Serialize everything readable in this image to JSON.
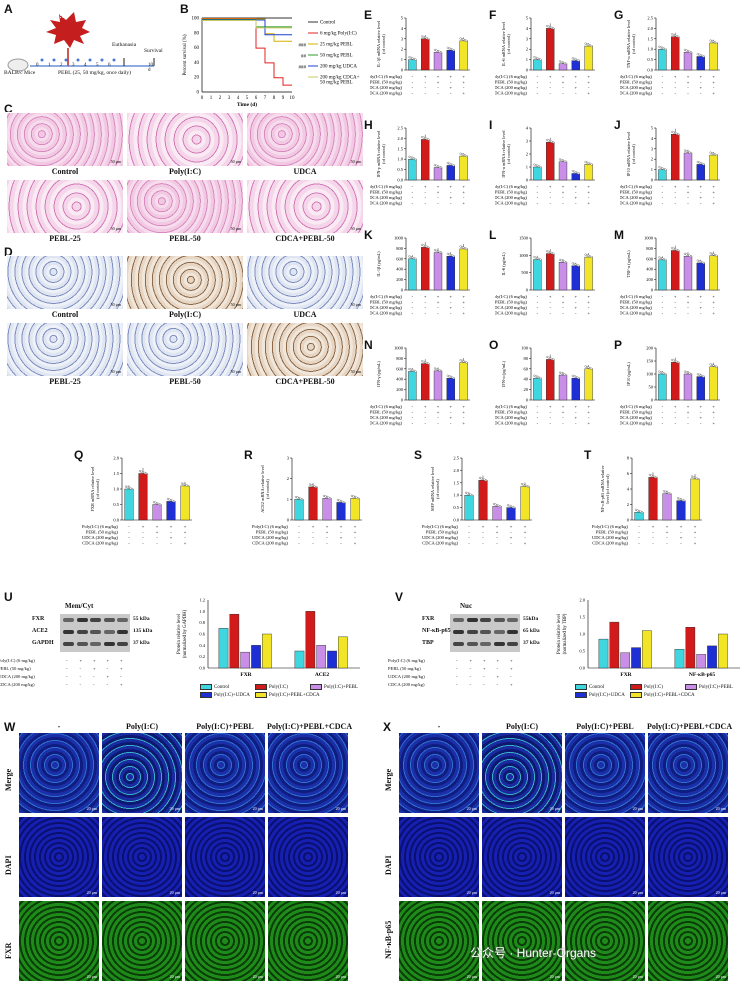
{
  "panels": {
    "A": {
      "label": "A",
      "stimulus": "Poly(I:C)",
      "mouse": "BALB/c Mice",
      "treatment": "PEBL (25, 50 mg/kg, once daily)",
      "euthanasia": "Euthanasia",
      "survival": "Survival",
      "days": [
        "0",
        "1",
        "2",
        "3",
        "4",
        "5",
        "6",
        "10 d"
      ]
    },
    "B": {
      "label": "B",
      "ylabel": "Percent survival (%)",
      "xlabel": "Time (d)",
      "legend": [
        "Control",
        "6 mg/kg Poly(I:C)",
        "25 mg/kg PEBL",
        "50 mg/kg PEBL",
        "200 mg/kg UDCA",
        "200 mg/kg CDCA+\n50 mg/kg PEBL"
      ],
      "sig": [
        "###",
        "##",
        "###"
      ],
      "legend_colors": [
        "#333333",
        "#e02020",
        "#d6b100",
        "#2a9d2a",
        "#1f3fd0",
        "#c8c860"
      ]
    },
    "C": {
      "label": "C",
      "captions": [
        "Control",
        "Poly(I:C)",
        "UDCA",
        "PEBL-25",
        "PEBL-50",
        "CDCA+PEBL-50"
      ],
      "scale": "50 µm"
    },
    "D": {
      "label": "D",
      "captions": [
        "Control",
        "Poly(I:C)",
        "UDCA",
        "PEBL-25",
        "PEBL-50",
        "CDCA+PEBL-50"
      ],
      "scale": "50 µm"
    },
    "treat_rows4": "Poly(I:C) (6 mg/kg)\nPEBL (50 mg/kg)\nUDCA (200 mg/kg)\nCDCA (200 mg/kg)",
    "signs4": "-  +  +  +  +\n-  -  +  -  +\n-  -  -  +  -\n-  -  -  -  +",
    "U": {
      "label": "U",
      "blot_title": "Mem/Cyt",
      "rows": [
        "FXR",
        "ACE2",
        "GAPDH"
      ],
      "kda": [
        "55 kDa",
        "135 kDa",
        "37 kDa"
      ],
      "ylabel": "Protein relative level\n(normalized by GAPDH)",
      "groups": [
        "FXR",
        "ACE2"
      ],
      "legend": [
        "Control",
        "Poly(I:C)",
        "Poly(I:C)+PEBL",
        "Poly(I:C)+UDCA",
        "Poly(I:C)+PEBL+CDCA"
      ]
    },
    "V": {
      "label": "V",
      "blot_title": "Nuc",
      "rows": [
        "FXR",
        "NF-κB-p65",
        "TBP"
      ],
      "kda": [
        "55kDa",
        "65 kDa",
        "37 kDa"
      ],
      "ylabel": "Protein relative level\n(normalized by TBP)",
      "groups": [
        "FXR",
        "NF-κB-p65"
      ],
      "legend": [
        "Control",
        "Poly(I:C)",
        "Poly(I:C)+PEBL",
        "Poly(I:C)+UDCA",
        "Poly(I:C)+PEBL+CDCA"
      ]
    },
    "W": {
      "label": "W",
      "cols": [
        "-",
        "Poly(I:C)",
        "Poly(I:C)+PEBL",
        "Poly(I:C)+PEBL+CDCA"
      ],
      "rows": [
        "Merge",
        "DAPI",
        "FXR"
      ],
      "scale": "20 µm"
    },
    "X": {
      "label": "X",
      "cols": [
        "-",
        "Poly(I:C)",
        "Poly(I:C)+PEBL",
        "Poly(I:C)+PEBL+CDCA"
      ],
      "rows": [
        "Merge",
        "DAPI",
        "NF-κB-p65"
      ],
      "scale": "20 µm"
    },
    "watermark": "公众号 · Hunter-Organs"
  },
  "chart_data": [
    {
      "panel": "B",
      "type": "line",
      "title": "",
      "xlabel": "Time (d)",
      "ylabel": "Percent survival (%)",
      "x": [
        0,
        1,
        2,
        3,
        4,
        5,
        6,
        7,
        8,
        9,
        10
      ],
      "xlim": [
        0,
        10
      ],
      "ylim": [
        0,
        100
      ],
      "series": [
        {
          "name": "Control",
          "values": [
            100,
            100,
            100,
            100,
            100,
            100,
            100,
            100,
            100,
            100,
            100
          ]
        },
        {
          "name": "6 mg/kg Poly(I:C)",
          "values": [
            100,
            100,
            100,
            100,
            100,
            100,
            60,
            40,
            20,
            10,
            10
          ]
        },
        {
          "name": "25 mg/kg PEBL",
          "values": [
            100,
            100,
            100,
            100,
            100,
            100,
            100,
            80,
            70,
            70,
            70
          ]
        },
        {
          "name": "50 mg/kg PEBL",
          "values": [
            100,
            100,
            100,
            100,
            100,
            100,
            90,
            90,
            90,
            90,
            90
          ]
        },
        {
          "name": "200 mg/kg UDCA",
          "values": [
            100,
            100,
            100,
            100,
            100,
            100,
            100,
            80,
            80,
            80,
            80
          ]
        },
        {
          "name": "200 mg/kg CDCA+ 50 mg/kg PEBL",
          "values": [
            100,
            100,
            100,
            100,
            100,
            100,
            90,
            90,
            90,
            90,
            90
          ]
        }
      ]
    },
    {
      "panel": "E",
      "type": "bar",
      "ylabel": "IL-1β mRNA relative level\n(of control)",
      "ylim": [
        0,
        5
      ],
      "yticks": [
        "0",
        "1",
        "2",
        "3",
        "4",
        "5"
      ],
      "values": [
        1.0,
        3.0,
        1.7,
        1.9,
        2.8
      ]
    },
    {
      "panel": "F",
      "type": "bar",
      "ylabel": "IL-6 mRNA relative level\n(of control)",
      "ylim": [
        0,
        5
      ],
      "yticks": [
        "0",
        "1",
        "2",
        "3",
        "4",
        "5"
      ],
      "values": [
        1.0,
        4.0,
        0.6,
        0.9,
        2.3
      ]
    },
    {
      "panel": "G",
      "type": "bar",
      "ylabel": "TNF-α mRNA relative level\n(of control)",
      "ylim": [
        0,
        2.5
      ],
      "yticks": [
        "0.0",
        "0.5",
        "1.0",
        "1.5",
        "2.0",
        "2.5"
      ],
      "values": [
        1.0,
        1.6,
        0.85,
        0.65,
        1.3
      ]
    },
    {
      "panel": "H",
      "type": "bar",
      "ylabel": "IFN-γ mRNA relative level\n(of control)",
      "ylim": [
        0,
        2.5
      ],
      "yticks": [
        "0.0",
        "0.5",
        "1.0",
        "1.5",
        "2.0",
        "2.5"
      ],
      "values": [
        1.0,
        1.95,
        0.6,
        0.7,
        1.15
      ]
    },
    {
      "panel": "I",
      "type": "bar",
      "ylabel": "IFN-α mRNA relative level\n(of control)",
      "ylim": [
        0,
        4
      ],
      "yticks": [
        "0",
        "1",
        "2",
        "3",
        "4"
      ],
      "values": [
        1.0,
        2.9,
        1.4,
        0.5,
        1.2
      ]
    },
    {
      "panel": "J",
      "type": "bar",
      "ylabel": "IP10 mRNA relative level\n(of control)",
      "ylim": [
        0,
        5
      ],
      "yticks": [
        "0",
        "1",
        "2",
        "3",
        "4",
        "5"
      ],
      "values": [
        1.0,
        4.4,
        2.6,
        1.5,
        2.4
      ]
    },
    {
      "panel": "K",
      "type": "bar",
      "ylabel": "IL-1β (pg/mL)",
      "ylim": [
        0,
        1000
      ],
      "yticks": [
        "0",
        "200",
        "400",
        "600",
        "800",
        "1000"
      ],
      "values": [
        600,
        820,
        720,
        650,
        790
      ]
    },
    {
      "panel": "L",
      "type": "bar",
      "ylabel": "IL-6 (pg/mL)",
      "ylim": [
        0,
        1500
      ],
      "yticks": [
        "0",
        "500",
        "1000",
        "1500"
      ],
      "values": [
        880,
        1050,
        800,
        700,
        950
      ]
    },
    {
      "panel": "M",
      "type": "bar",
      "ylabel": "TNF-α (pg/mL)",
      "ylim": [
        0,
        1000
      ],
      "yticks": [
        "0",
        "200",
        "400",
        "600",
        "800",
        "1000"
      ],
      "values": [
        580,
        760,
        650,
        520,
        660
      ]
    },
    {
      "panel": "N",
      "type": "bar",
      "ylabel": "IFN-γ (pg/mL)",
      "ylim": [
        0,
        1000
      ],
      "yticks": [
        "0",
        "200",
        "400",
        "600",
        "800",
        "1000"
      ],
      "values": [
        550,
        700,
        560,
        420,
        720
      ]
    },
    {
      "panel": "O",
      "type": "bar",
      "ylabel": "IFN-α (pg/mL)",
      "ylim": [
        0,
        100
      ],
      "yticks": [
        "0",
        "20",
        "40",
        "60",
        "80",
        "100"
      ],
      "values": [
        42,
        78,
        48,
        42,
        60
      ]
    },
    {
      "panel": "P",
      "type": "bar",
      "ylabel": "IP10 (pg/mL)",
      "ylim": [
        0,
        200
      ],
      "yticks": [
        "0",
        "50",
        "100",
        "150",
        "200"
      ],
      "values": [
        100,
        145,
        100,
        90,
        128
      ]
    },
    {
      "panel": "Q",
      "type": "bar",
      "ylabel": "FXR mRNA relative level\n(of control)",
      "ylim": [
        0,
        2.0
      ],
      "yticks": [
        "0.0",
        "0.5",
        "1.0",
        "1.5",
        "2.0"
      ],
      "values": [
        1.0,
        1.5,
        0.5,
        0.6,
        1.1
      ]
    },
    {
      "panel": "R",
      "type": "bar",
      "ylabel": "ACE2 mRNA relative level\n(of control)",
      "ylim": [
        0,
        3
      ],
      "yticks": [
        "0",
        "1",
        "2",
        "3"
      ],
      "values": [
        1.0,
        1.6,
        1.05,
        0.85,
        1.05
      ]
    },
    {
      "panel": "S",
      "type": "bar",
      "ylabel": "SHP mRNA relative level\n(of control)",
      "ylim": [
        0,
        2.5
      ],
      "yticks": [
        "0.0",
        "0.5",
        "1.0",
        "1.5",
        "2.0",
        "2.5"
      ],
      "values": [
        1.0,
        1.6,
        0.55,
        0.5,
        1.35
      ]
    },
    {
      "panel": "T",
      "type": "bar",
      "ylabel": "NF-κB-p65 mRNA relative\nlevel (of control)",
      "ylim": [
        0,
        8
      ],
      "yticks": [
        "0",
        "2",
        "4",
        "6",
        "8"
      ],
      "values": [
        1.0,
        5.5,
        3.4,
        2.5,
        5.3
      ]
    },
    {
      "panel": "U",
      "type": "bar",
      "ylabel": "Protein relative level\n(normalized by GAPDH)",
      "ylim": [
        0,
        1.2
      ],
      "yticks": [
        "0.0",
        "0.2",
        "0.4",
        "0.6",
        "0.8",
        "1.0",
        "1.2"
      ],
      "categories": [
        "FXR",
        "ACE2"
      ],
      "series": [
        {
          "name": "Control",
          "values": [
            0.7,
            0.3
          ]
        },
        {
          "name": "Poly(I:C)",
          "values": [
            0.95,
            1.0
          ]
        },
        {
          "name": "Poly(I:C)+PEBL",
          "values": [
            0.28,
            0.4
          ]
        },
        {
          "name": "Poly(I:C)+UDCA",
          "values": [
            0.4,
            0.3
          ]
        },
        {
          "name": "Poly(I:C)+PEBL+CDCA",
          "values": [
            0.6,
            0.55
          ]
        }
      ]
    },
    {
      "panel": "V",
      "type": "bar",
      "ylabel": "Protein relative level\n(normalized by TBP)",
      "ylim": [
        0,
        2.0
      ],
      "yticks": [
        "0.0",
        "0.5",
        "1.0",
        "1.5",
        "2.0"
      ],
      "categories": [
        "FXR",
        "NF-κB-p65"
      ],
      "series": [
        {
          "name": "Control",
          "values": [
            0.85,
            0.55
          ]
        },
        {
          "name": "Poly(I:C)",
          "values": [
            1.35,
            1.2
          ]
        },
        {
          "name": "Poly(I:C)+PEBL",
          "values": [
            0.45,
            0.4
          ]
        },
        {
          "name": "Poly(I:C)+UDCA",
          "values": [
            0.6,
            0.65
          ]
        },
        {
          "name": "Poly(I:C)+PEBL+CDCA",
          "values": [
            1.1,
            1.0
          ]
        }
      ]
    }
  ],
  "colors": {
    "bars": [
      "#3fd6e0",
      "#d11a1a",
      "#c98ee8",
      "#1f2fd6",
      "#f2e426"
    ],
    "gridline": "#000000"
  }
}
